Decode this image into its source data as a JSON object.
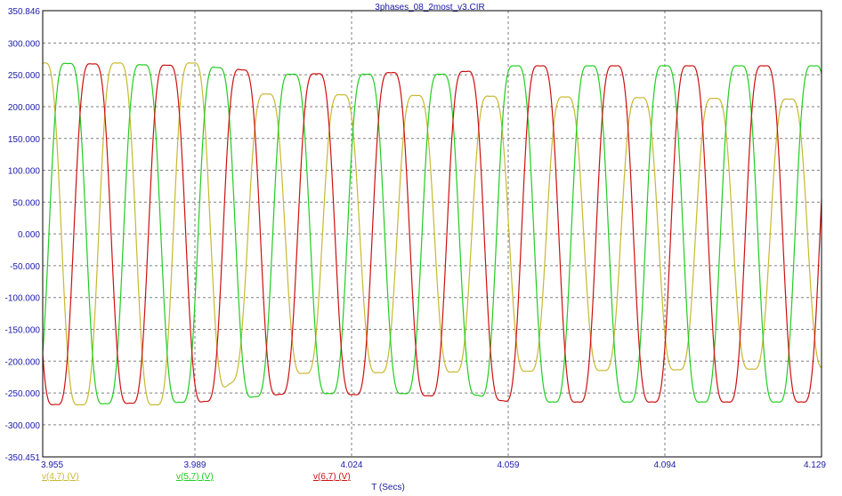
{
  "chart_data": {
    "type": "line",
    "title": "3phases_08_2most_v3.CIR",
    "xlabel": "T (Secs)",
    "ylabel": "",
    "xlim": [
      3.955,
      4.129
    ],
    "ylim": [
      -350.451,
      350.846
    ],
    "grid": true,
    "x_ticks": [
      "3.955",
      "3.989",
      "4.024",
      "4.059",
      "4.094",
      "4.129"
    ],
    "y_ticks": [
      "350.846",
      "300.000",
      "250.000",
      "200.000",
      "150.000",
      "100.000",
      "50.000",
      "0.000",
      "-50.000",
      "-100.000",
      "-150.000",
      "-200.000",
      "-250.000",
      "-300.000",
      "-350.451"
    ],
    "legend_position": "bottom-left",
    "colors": {
      "axis_text": "#1a1aa8",
      "grid": "#808080",
      "frame": "#000000"
    },
    "period_s": 0.01667,
    "series": [
      {
        "name": "v(4,7) (V)",
        "color": "#c8b830",
        "phase_deg": 90,
        "envelope": [
          [
            3.955,
            305
          ],
          [
            3.99,
            305
          ],
          [
            4.0,
            250
          ],
          [
            4.129,
            240
          ]
        ]
      },
      {
        "name": "v(5,7) (V)",
        "color": "#22cc22",
        "phase_deg": -30,
        "envelope": [
          [
            3.955,
            305
          ],
          [
            3.99,
            300
          ],
          [
            4.01,
            285
          ],
          [
            4.05,
            285
          ],
          [
            4.06,
            300
          ],
          [
            4.129,
            300
          ]
        ]
      },
      {
        "name": "v(6,7) (V)",
        "color": "#cc1111",
        "phase_deg": 210,
        "envelope": [
          [
            3.955,
            305
          ],
          [
            3.99,
            300
          ],
          [
            4.01,
            285
          ],
          [
            4.05,
            290
          ],
          [
            4.06,
            300
          ],
          [
            4.129,
            300
          ]
        ]
      }
    ]
  }
}
